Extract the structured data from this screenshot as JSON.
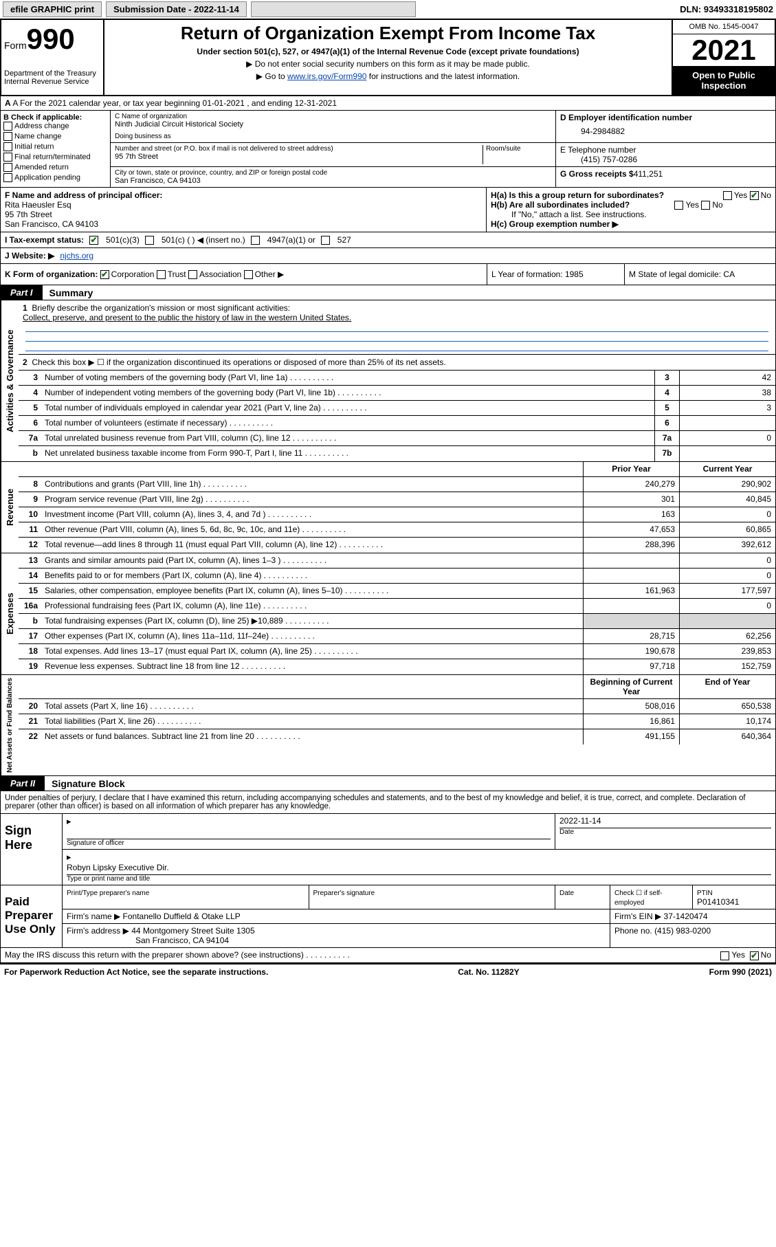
{
  "colors": {
    "link": "#0645ad",
    "black": "#000000",
    "white": "#ffffff",
    "check": "#1a6b1a",
    "shade": "#d8d8d8",
    "ruleblue": "#2060c0"
  },
  "topbar": {
    "efile": "efile GRAPHIC print",
    "submission": "Submission Date - 2022-11-14",
    "dln": "DLN: 93493318195802"
  },
  "header": {
    "form_word": "Form",
    "form_num": "990",
    "dept": "Department of the Treasury",
    "irs": "Internal Revenue Service",
    "title": "Return of Organization Exempt From Income Tax",
    "sub": "Under section 501(c), 527, or 4947(a)(1) of the Internal Revenue Code (except private foundations)",
    "note1": "▶ Do not enter social security numbers on this form as it may be made public.",
    "note2_pre": "▶ Go to ",
    "note2_link": "www.irs.gov/Form990",
    "note2_post": " for instructions and the latest information.",
    "omb": "OMB No. 1545-0047",
    "year": "2021",
    "open": "Open to Public Inspection"
  },
  "rowA": "A For the 2021 calendar year, or tax year beginning 01-01-2021  , and ending 12-31-2021",
  "colB": {
    "label": "B Check if applicable:",
    "opts": [
      "Address change",
      "Name change",
      "Initial return",
      "Final return/terminated",
      "Amended return",
      "Application pending"
    ]
  },
  "colC": {
    "name_label": "C Name of organization",
    "name": "Ninth Judicial Circuit Historical Society",
    "dba_label": "Doing business as",
    "dba": "",
    "addr_label": "Number and street (or P.O. box if mail is not delivered to street address)",
    "room_label": "Room/suite",
    "addr": "95 7th Street",
    "city_label": "City or town, state or province, country, and ZIP or foreign postal code",
    "city": "San Francisco, CA  94103"
  },
  "colD": {
    "ein_label": "D Employer identification number",
    "ein": "94-2984882",
    "tel_label": "E Telephone number",
    "tel": "(415) 757-0286",
    "gross_label": "G Gross receipts $",
    "gross": "411,251"
  },
  "rowF": {
    "label": "F  Name and address of principal officer:",
    "name": "Rita Haeusler Esq",
    "addr1": "95 7th Street",
    "addr2": "San Francisco, CA  94103"
  },
  "rowH": {
    "ha": "H(a)  Is this a group return for subordinates?",
    "hb": "H(b)  Are all subordinates included?",
    "hb_note": "If \"No,\" attach a list. See instructions.",
    "hc": "H(c)  Group exemption number ▶",
    "yes": "Yes",
    "no": "No"
  },
  "rowI": {
    "label": "I   Tax-exempt status:",
    "o501c3": "501(c)(3)",
    "o501c": "501(c) (  ) ◀ (insert no.)",
    "o4947": "4947(a)(1) or",
    "o527": "527"
  },
  "rowJ": {
    "label": "J   Website: ▶",
    "site": "njchs.org"
  },
  "rowK": {
    "label": "K Form of organization:",
    "corp": "Corporation",
    "trust": "Trust",
    "assoc": "Association",
    "other": "Other ▶",
    "L": "L Year of formation: 1985",
    "M": "M State of legal domicile: CA"
  },
  "part1": {
    "tab": "Part I",
    "title": "Summary"
  },
  "governance": {
    "q1": "Briefly describe the organization's mission or most significant activities:",
    "mission": "Collect, preserve, and present to the public the history of law in the western United States.",
    "q2": "Check this box ▶ ☐  if the organization discontinued its operations or disposed of more than 25% of its net assets.",
    "rows": [
      {
        "n": "3",
        "d": "Number of voting members of the governing body (Part VI, line 1a)",
        "box": "3",
        "v": "42"
      },
      {
        "n": "4",
        "d": "Number of independent voting members of the governing body (Part VI, line 1b)",
        "box": "4",
        "v": "38"
      },
      {
        "n": "5",
        "d": "Total number of individuals employed in calendar year 2021 (Part V, line 2a)",
        "box": "5",
        "v": "3"
      },
      {
        "n": "6",
        "d": "Total number of volunteers (estimate if necessary)",
        "box": "6",
        "v": ""
      },
      {
        "n": "7a",
        "d": "Total unrelated business revenue from Part VIII, column (C), line 12",
        "box": "7a",
        "v": "0"
      },
      {
        "n": "b",
        "d": "Net unrelated business taxable income from Form 990-T, Part I, line 11",
        "box": "7b",
        "v": ""
      }
    ]
  },
  "colheads": {
    "prior": "Prior Year",
    "current": "Current Year",
    "boy": "Beginning of Current Year",
    "eoy": "End of Year"
  },
  "revenue": [
    {
      "n": "8",
      "d": "Contributions and grants (Part VIII, line 1h)",
      "p": "240,279",
      "c": "290,902"
    },
    {
      "n": "9",
      "d": "Program service revenue (Part VIII, line 2g)",
      "p": "301",
      "c": "40,845"
    },
    {
      "n": "10",
      "d": "Investment income (Part VIII, column (A), lines 3, 4, and 7d )",
      "p": "163",
      "c": "0"
    },
    {
      "n": "11",
      "d": "Other revenue (Part VIII, column (A), lines 5, 6d, 8c, 9c, 10c, and 11e)",
      "p": "47,653",
      "c": "60,865"
    },
    {
      "n": "12",
      "d": "Total revenue—add lines 8 through 11 (must equal Part VIII, column (A), line 12)",
      "p": "288,396",
      "c": "392,612"
    }
  ],
  "expenses": [
    {
      "n": "13",
      "d": "Grants and similar amounts paid (Part IX, column (A), lines 1–3 )",
      "p": "",
      "c": "0"
    },
    {
      "n": "14",
      "d": "Benefits paid to or for members (Part IX, column (A), line 4)",
      "p": "",
      "c": "0"
    },
    {
      "n": "15",
      "d": "Salaries, other compensation, employee benefits (Part IX, column (A), lines 5–10)",
      "p": "161,963",
      "c": "177,597"
    },
    {
      "n": "16a",
      "d": "Professional fundraising fees (Part IX, column (A), line 11e)",
      "p": "",
      "c": "0"
    },
    {
      "n": "b",
      "d": "Total fundraising expenses (Part IX, column (D), line 25) ▶10,889",
      "p": "SHADE",
      "c": "SHADE"
    },
    {
      "n": "17",
      "d": "Other expenses (Part IX, column (A), lines 11a–11d, 11f–24e)",
      "p": "28,715",
      "c": "62,256"
    },
    {
      "n": "18",
      "d": "Total expenses. Add lines 13–17 (must equal Part IX, column (A), line 25)",
      "p": "190,678",
      "c": "239,853"
    },
    {
      "n": "19",
      "d": "Revenue less expenses. Subtract line 18 from line 12",
      "p": "97,718",
      "c": "152,759"
    }
  ],
  "netassets": [
    {
      "n": "20",
      "d": "Total assets (Part X, line 16)",
      "p": "508,016",
      "c": "650,538"
    },
    {
      "n": "21",
      "d": "Total liabilities (Part X, line 26)",
      "p": "16,861",
      "c": "10,174"
    },
    {
      "n": "22",
      "d": "Net assets or fund balances. Subtract line 21 from line 20",
      "p": "491,155",
      "c": "640,364"
    }
  ],
  "sidelabels": {
    "gov": "Activities & Governance",
    "rev": "Revenue",
    "exp": "Expenses",
    "net": "Net Assets or Fund Balances"
  },
  "part2": {
    "tab": "Part II",
    "title": "Signature Block"
  },
  "penalties": "Under penalties of perjury, I declare that I have examined this return, including accompanying schedules and statements, and to the best of my knowledge and belief, it is true, correct, and complete. Declaration of preparer (other than officer) is based on all information of which preparer has any knowledge.",
  "sign": {
    "left": "Sign Here",
    "sig_label": "Signature of officer",
    "date_label": "Date",
    "date": "2022-11-14",
    "name": "Robyn Lipsky  Executive Dir.",
    "name_label": "Type or print name and title"
  },
  "preparer": {
    "left": "Paid Preparer Use Only",
    "h1": "Print/Type preparer's name",
    "h2": "Preparer's signature",
    "h3": "Date",
    "h4a": "Check ☐ if self-employed",
    "h4b": "PTIN",
    "ptin": "P01410341",
    "firm_label": "Firm's name    ▶",
    "firm": "Fontanello Duffield & Otake LLP",
    "ein_label": "Firm's EIN ▶",
    "ein": "37-1420474",
    "addr_label": "Firm's address ▶",
    "addr1": "44 Montgomery Street Suite 1305",
    "addr2": "San Francisco, CA  94104",
    "phone_label": "Phone no.",
    "phone": "(415) 983-0200"
  },
  "discuss": {
    "q": "May the IRS discuss this return with the preparer shown above? (see instructions)",
    "yes": "Yes",
    "no": "No"
  },
  "footer": {
    "left": "For Paperwork Reduction Act Notice, see the separate instructions.",
    "mid": "Cat. No. 11282Y",
    "right": "Form 990 (2021)"
  }
}
